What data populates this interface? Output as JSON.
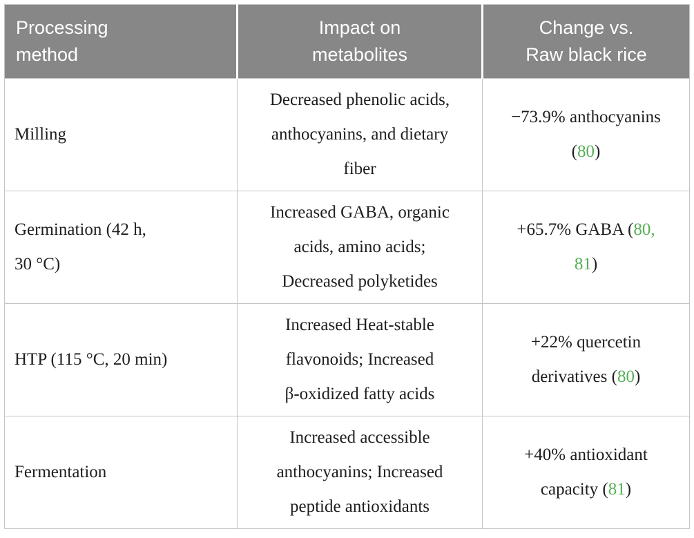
{
  "table": {
    "columns": [
      {
        "id": "method",
        "label": "Processing\nmethod",
        "align": "left"
      },
      {
        "id": "impact",
        "label": "Impact on\nmetabolites",
        "align": "center"
      },
      {
        "id": "change",
        "label": "Change vs.\nRaw black rice",
        "align": "center"
      }
    ],
    "rows": [
      {
        "method": "Milling",
        "impact": "Decreased phenolic acids,\nanthocyanins, and dietary\nfiber",
        "change": [
          {
            "text": "−73.9% anthocyanins\n("
          },
          {
            "text": "80",
            "ref": true
          },
          {
            "text": ")"
          }
        ]
      },
      {
        "method": "Germination (42 h,\n30 °C)",
        "impact": "Increased GABA, organic\nacids, amino acids;\nDecreased polyketides",
        "change": [
          {
            "text": "+65.7% GABA ("
          },
          {
            "text": "80,",
            "ref": true
          },
          {
            "text": "\n"
          },
          {
            "text": "81",
            "ref": true
          },
          {
            "text": ")"
          }
        ]
      },
      {
        "method": "HTP (115 °C, 20 min)",
        "impact": "Increased Heat-stable\nflavonoids; Increased\nβ-oxidized fatty acids",
        "change": [
          {
            "text": "+22% quercetin\nderivatives ("
          },
          {
            "text": "80",
            "ref": true
          },
          {
            "text": ")"
          }
        ]
      },
      {
        "method": "Fermentation",
        "impact": "Increased accessible\nanthocyanins; Increased\npeptide antioxidants",
        "change": [
          {
            "text": "+40% antioxidant\ncapacity ("
          },
          {
            "text": "81",
            "ref": true
          },
          {
            "text": ")"
          }
        ]
      }
    ],
    "colors": {
      "header_bg": "#878787",
      "header_text": "#ffffff",
      "body_text": "#1e1e1e",
      "reference_link": "#54b054",
      "border": "#c5c5c5"
    }
  }
}
